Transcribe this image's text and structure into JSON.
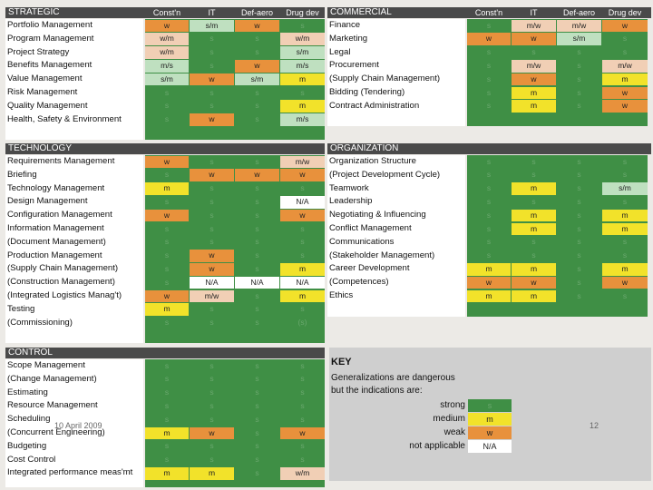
{
  "column_headers": [
    "Const'n",
    "IT",
    "Def-aero",
    "Drug dev"
  ],
  "sections": [
    {
      "id": "strategic",
      "title": "STRATEGIC",
      "rows": [
        {
          "label": "Portfolio Management",
          "cells": [
            "w",
            "s/m",
            "w",
            "s"
          ]
        },
        {
          "label": "Program Management",
          "cells": [
            "w/m",
            "s",
            "s",
            "w/m"
          ]
        },
        {
          "label": "Project Strategy",
          "cells": [
            "w/m",
            "s",
            "s",
            "s/m"
          ]
        },
        {
          "label": "Benefits Management",
          "cells": [
            "m/s",
            "s",
            "w",
            "m/s"
          ]
        },
        {
          "label": "Value Management",
          "cells": [
            "s/m",
            "w",
            "s/m",
            "m"
          ]
        },
        {
          "label": "Risk Management",
          "cells": [
            "s",
            "s",
            "s",
            "s"
          ]
        },
        {
          "label": "Quality Management",
          "cells": [
            "s",
            "s",
            "s",
            "m"
          ]
        },
        {
          "label": "Health, Safety & Environment",
          "cells": [
            "s",
            "w",
            "s",
            "m/s"
          ]
        }
      ]
    },
    {
      "id": "commercial",
      "title": "COMMERCIAL",
      "rows": [
        {
          "label": "Finance",
          "cells": [
            "s",
            "m/w",
            "m/w",
            "w"
          ]
        },
        {
          "label": "Marketing",
          "cells": [
            "w",
            "w",
            "s/m",
            "s"
          ]
        },
        {
          "label": "Legal",
          "cells": [
            "s",
            "s",
            "s",
            "s"
          ]
        },
        {
          "label": "Procurement",
          "cells": [
            "s",
            "m/w",
            "s",
            "m/w"
          ]
        },
        {
          "label": "(Supply Chain Management)",
          "cells": [
            "s",
            "w",
            "s",
            "m"
          ]
        },
        {
          "label": "Bidding (Tendering)",
          "cells": [
            "s",
            "m",
            "s",
            "w"
          ]
        },
        {
          "label": "Contract Administration",
          "cells": [
            "s",
            "m",
            "s",
            "w"
          ]
        }
      ]
    },
    {
      "id": "technology",
      "title": "TECHNOLOGY",
      "rows": [
        {
          "label": "Requirements Management",
          "cells": [
            "w",
            "s",
            "s",
            "m/w"
          ]
        },
        {
          "label": "Briefing",
          "cells": [
            "s",
            "w",
            "w",
            "w"
          ]
        },
        {
          "label": "Technology Management",
          "cells": [
            "m",
            "s",
            "s",
            "s"
          ]
        },
        {
          "label": "Design Management",
          "cells": [
            "s",
            "s",
            "s",
            "N/A"
          ]
        },
        {
          "label": "Configuration Management",
          "cells": [
            "w",
            "s",
            "s",
            "w"
          ]
        },
        {
          "label": "Information Management",
          "cells": [
            "s",
            "s",
            "s",
            "s"
          ]
        },
        {
          "label": "(Document Management)",
          "cells": [
            "s",
            "s",
            "s",
            "s"
          ]
        },
        {
          "label": "Production Management",
          "cells": [
            "s",
            "w",
            "s",
            "s"
          ]
        },
        {
          "label": "(Supply Chain Management)",
          "cells": [
            "s",
            "w",
            "s",
            "m"
          ]
        },
        {
          "label": "(Construction Management)",
          "cells": [
            "s",
            "N/A",
            "N/A",
            "N/A"
          ]
        },
        {
          "label": "(Integrated Logistics Manag't)",
          "cells": [
            "w",
            "m/w",
            "s",
            "m"
          ]
        },
        {
          "label": "Testing",
          "cells": [
            "m",
            "s",
            "s",
            "s"
          ]
        },
        {
          "label": "(Commissioning)",
          "cells": [
            "s",
            "s",
            "s",
            "(s)"
          ]
        }
      ]
    },
    {
      "id": "organization",
      "title": "ORGANIZATION",
      "rows": [
        {
          "label": "Organization Structure",
          "cells": [
            "s",
            "s",
            "s",
            "s"
          ]
        },
        {
          "label": "(Project Development Cycle)",
          "cells": [
            "s",
            "s",
            "s",
            "s"
          ]
        },
        {
          "label": "Teamwork",
          "cells": [
            "s",
            "m",
            "s",
            "s/m"
          ]
        },
        {
          "label": "Leadership",
          "cells": [
            "s",
            "s",
            "s",
            "s"
          ]
        },
        {
          "label": "Negotiating & Influencing",
          "cells": [
            "s",
            "m",
            "s",
            "m"
          ]
        },
        {
          "label": "Conflict Management",
          "cells": [
            "s",
            "m",
            "s",
            "m"
          ]
        },
        {
          "label": "Communications",
          "cells": [
            "s",
            "s",
            "s",
            "s"
          ]
        },
        {
          "label": "(Stakeholder Management)",
          "cells": [
            "s",
            "s",
            "s",
            "s"
          ]
        },
        {
          "label": "Career Development",
          "cells": [
            "m",
            "m",
            "s",
            "m"
          ]
        },
        {
          "label": "(Competences)",
          "cells": [
            "w",
            "w",
            "s",
            "w"
          ]
        },
        {
          "label": "Ethics",
          "cells": [
            "m",
            "m",
            "s",
            "s"
          ]
        }
      ]
    },
    {
      "id": "control",
      "title": "CONTROL",
      "rows": [
        {
          "label": "Scope Management",
          "cells": [
            "s",
            "s",
            "s",
            "s"
          ]
        },
        {
          "label": "(Change Management)",
          "cells": [
            "s",
            "s",
            "s",
            "s"
          ]
        },
        {
          "label": "Estimating",
          "cells": [
            "s",
            "s",
            "s",
            "s"
          ]
        },
        {
          "label": "Resource Management",
          "cells": [
            "s",
            "s",
            "s",
            "s"
          ]
        },
        {
          "label": "Scheduling",
          "cells": [
            "s",
            "s",
            "s",
            "s"
          ]
        },
        {
          "label": "(Concurrent Engineering)",
          "cells": [
            "m",
            "w",
            "s",
            "w"
          ]
        },
        {
          "label": "Budgeting",
          "cells": [
            "s",
            "s",
            "s",
            "s"
          ]
        },
        {
          "label": "Cost Control",
          "cells": [
            "s",
            "s",
            "s",
            "s"
          ]
        },
        {
          "label": "Integrated performance meas'mt",
          "cells": [
            "m",
            "m",
            "s",
            "w/m"
          ]
        }
      ]
    }
  ],
  "key": {
    "title": "KEY",
    "line1": "Generalizations are dangerous",
    "line2": "but the indications are:",
    "items": [
      {
        "label": "strong",
        "value": "s",
        "color": "#3f8f45"
      },
      {
        "label": "medium",
        "value": "m",
        "color": "#f2e22a"
      },
      {
        "label": "weak",
        "value": "w",
        "color": "#e8913c"
      },
      {
        "label": "not applicable",
        "value": "N/A",
        "color": "#ffffff"
      }
    ]
  },
  "footer": {
    "date": "10 April 2009",
    "page": "12"
  },
  "colors": {
    "strong": "#3f8f45",
    "medium": "#f2e22a",
    "weak": "#e8913c",
    "na": "#ffffff",
    "header": "#4a4a4a"
  }
}
